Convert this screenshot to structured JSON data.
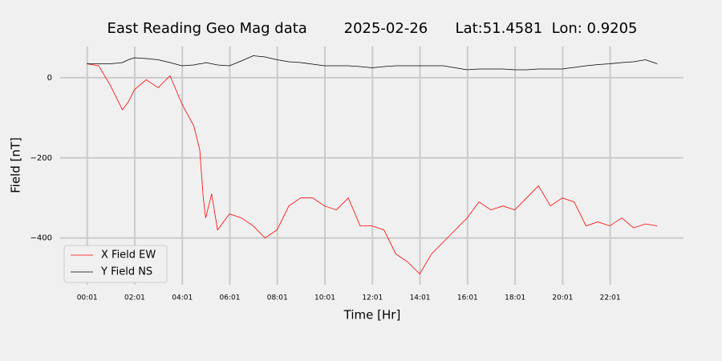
{
  "chart_data": {
    "type": "line",
    "title": "East Reading Geo Mag data        2025-02-26      Lat:51.4581  Lon: 0.9205",
    "xlabel": "Time  [Hr]",
    "ylabel": "Field  [nT]",
    "x": [
      0,
      0.5,
      1,
      1.5,
      1.75,
      2,
      2.5,
      3,
      3.5,
      4,
      4.5,
      4.75,
      4.9,
      5,
      5.25,
      5.5,
      6,
      6.5,
      7,
      7.5,
      8,
      8.5,
      9,
      9.5,
      10,
      10.5,
      11,
      11.5,
      12,
      12.5,
      13,
      13.5,
      14,
      14.5,
      15,
      15.5,
      16,
      16.5,
      17,
      17.5,
      18,
      18.5,
      19,
      19.5,
      20,
      20.5,
      21,
      21.5,
      22,
      22.5,
      23,
      23.5,
      24
    ],
    "series": [
      {
        "name": "X Field EW",
        "color": "#ff0000",
        "values": [
          35,
          30,
          -20,
          -80,
          -60,
          -30,
          -5,
          -25,
          5,
          -65,
          -120,
          -180,
          -300,
          -350,
          -290,
          -380,
          -340,
          -350,
          -370,
          -400,
          -380,
          -320,
          -300,
          -300,
          -320,
          -330,
          -300,
          -370,
          -370,
          -380,
          -440,
          -460,
          -490,
          -440,
          -410,
          -380,
          -350,
          -310,
          -330,
          -320,
          -330,
          -300,
          -270,
          -320,
          -300,
          -310,
          -370,
          -360,
          -370,
          -350,
          -375,
          -365,
          -370
        ]
      },
      {
        "name": "Y Field NS",
        "color": "#000000",
        "values": [
          35,
          35,
          35,
          38,
          45,
          50,
          48,
          45,
          38,
          30,
          32,
          35,
          36,
          38,
          35,
          32,
          30,
          42,
          55,
          52,
          45,
          40,
          38,
          34,
          30,
          30,
          30,
          28,
          25,
          28,
          30,
          30,
          30,
          30,
          30,
          25,
          20,
          22,
          22,
          22,
          20,
          20,
          22,
          22,
          22,
          26,
          30,
          33,
          35,
          38,
          40,
          45,
          35
        ]
      }
    ],
    "xlim": [
      -1.12,
      25.1
    ],
    "xticks": [
      {
        "value": 0.0167,
        "label": "00:01"
      },
      {
        "value": 2.0167,
        "label": "02:01"
      },
      {
        "value": 4.0167,
        "label": "04:01"
      },
      {
        "value": 6.0167,
        "label": "06:01"
      },
      {
        "value": 8.0167,
        "label": "08:01"
      },
      {
        "value": 10.0167,
        "label": "10:01"
      },
      {
        "value": 12.0167,
        "label": "12:01"
      },
      {
        "value": 14.0167,
        "label": "14:01"
      },
      {
        "value": 16.0167,
        "label": "16:01"
      },
      {
        "value": 18.0167,
        "label": "18:01"
      },
      {
        "value": 20.0167,
        "label": "20:01"
      },
      {
        "value": 22.0167,
        "label": "22:01"
      }
    ],
    "ylim": [
      -517,
      78
    ],
    "yticks": [
      {
        "value": -400,
        "label": "−400"
      },
      {
        "value": -200,
        "label": "−200"
      },
      0
    ],
    "grid": true,
    "legend": "lower left"
  }
}
